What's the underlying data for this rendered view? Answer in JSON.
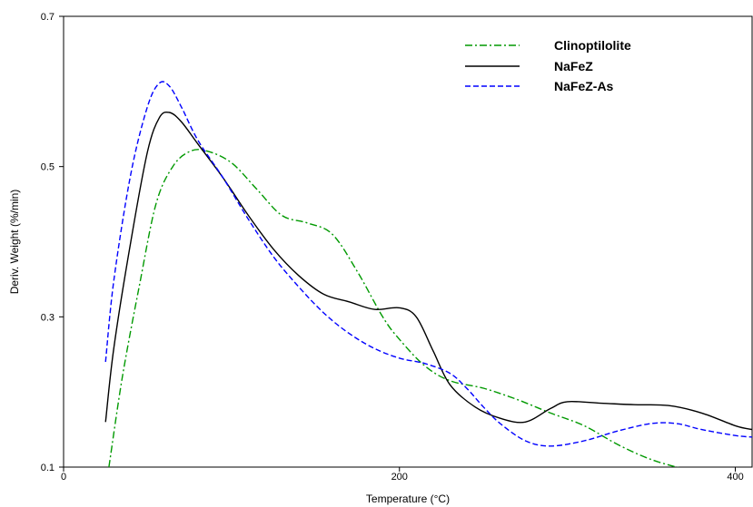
{
  "chart_data": {
    "type": "line",
    "title": "",
    "xlabel": "Temperature (°C)",
    "ylabel": "Deriv. Weight (%/min)",
    "xlim": [
      0,
      410
    ],
    "ylim": [
      0.1,
      0.7
    ],
    "x_ticks": [
      0,
      200,
      400
    ],
    "x_tick_labels": [
      "0",
      "200",
      "400"
    ],
    "y_ticks": [
      0.1,
      0.3,
      0.5,
      0.7
    ],
    "y_tick_labels": [
      "0.1",
      "0.3",
      "0.5",
      "0.7"
    ],
    "grid": false,
    "legend_position": "top-right",
    "series": [
      {
        "name": "Clinoptilolite",
        "color": "#009900",
        "style": "dash-dot",
        "x": [
          27,
          35,
          45,
          55,
          65,
          75,
          85,
          100,
          115,
          130,
          145,
          160,
          175,
          190,
          200,
          215,
          230,
          250,
          270,
          290,
          310,
          330,
          350,
          370
        ],
        "y": [
          0.1,
          0.22,
          0.34,
          0.45,
          0.5,
          0.52,
          0.521,
          0.505,
          0.47,
          0.435,
          0.425,
          0.41,
          0.36,
          0.3,
          0.27,
          0.235,
          0.215,
          0.205,
          0.19,
          0.172,
          0.155,
          0.13,
          0.11,
          0.097
        ]
      },
      {
        "name": "NaFeZ",
        "color": "#000000",
        "style": "solid",
        "x": [
          25,
          30,
          40,
          50,
          57,
          63,
          70,
          80,
          95,
          110,
          125,
          140,
          155,
          170,
          185,
          200,
          210,
          220,
          230,
          245,
          260,
          275,
          290,
          300,
          320,
          340,
          360,
          380,
          400,
          410
        ],
        "y": [
          0.16,
          0.26,
          0.4,
          0.52,
          0.565,
          0.572,
          0.56,
          0.53,
          0.485,
          0.435,
          0.39,
          0.355,
          0.33,
          0.32,
          0.31,
          0.312,
          0.3,
          0.255,
          0.21,
          0.18,
          0.165,
          0.16,
          0.178,
          0.187,
          0.185,
          0.183,
          0.182,
          0.172,
          0.155,
          0.15
        ]
      },
      {
        "name": "NaFeZ-As",
        "color": "#0000ff",
        "style": "dashed",
        "x": [
          25,
          30,
          40,
          50,
          57,
          63,
          70,
          80,
          95,
          110,
          125,
          140,
          155,
          170,
          185,
          200,
          215,
          230,
          240,
          250,
          260,
          275,
          290,
          310,
          330,
          350,
          365,
          380,
          400,
          410
        ],
        "y": [
          0.24,
          0.35,
          0.49,
          0.58,
          0.611,
          0.607,
          0.58,
          0.535,
          0.485,
          0.43,
          0.38,
          0.34,
          0.305,
          0.278,
          0.258,
          0.245,
          0.238,
          0.225,
          0.205,
          0.18,
          0.158,
          0.135,
          0.128,
          0.135,
          0.148,
          0.158,
          0.158,
          0.15,
          0.142,
          0.14
        ]
      }
    ]
  }
}
